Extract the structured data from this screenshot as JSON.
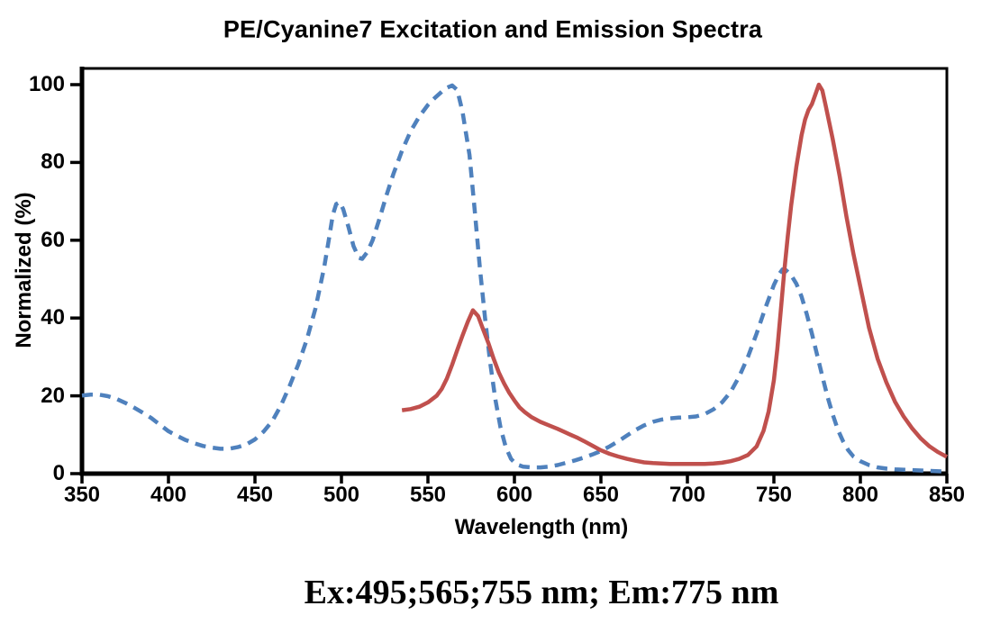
{
  "chart_data": {
    "type": "line",
    "title": "PE/Cyanine7 Excitation and Emission Spectra",
    "xlabel": "Wavelength (nm)",
    "ylabel": "Normalized (%)",
    "caption": "Ex:495;565;755 nm; Em:775 nm",
    "xlim": [
      350,
      850
    ],
    "ylim": [
      0,
      100
    ],
    "x_ticks": [
      350,
      400,
      450,
      500,
      550,
      600,
      650,
      700,
      750,
      800,
      850
    ],
    "y_ticks": [
      0,
      20,
      40,
      60,
      80,
      100
    ],
    "grid": false,
    "legend_position": "none",
    "axis_color": "#000000",
    "series": [
      {
        "name": "Excitation",
        "line_style": "dashed",
        "color": "#4f81bd",
        "peaks_nm": [
          495,
          565,
          755
        ],
        "points": [
          [
            350,
            20.1
          ],
          [
            355,
            20.3
          ],
          [
            360,
            20.3
          ],
          [
            365,
            19.9
          ],
          [
            370,
            19.2
          ],
          [
            375,
            18.2
          ],
          [
            380,
            17.0
          ],
          [
            385,
            15.7
          ],
          [
            390,
            14.3
          ],
          [
            395,
            12.6
          ],
          [
            400,
            10.9
          ],
          [
            405,
            9.7
          ],
          [
            410,
            8.6
          ],
          [
            415,
            7.8
          ],
          [
            420,
            7.1
          ],
          [
            425,
            6.7
          ],
          [
            430,
            6.4
          ],
          [
            435,
            6.4
          ],
          [
            440,
            6.8
          ],
          [
            445,
            7.5
          ],
          [
            450,
            8.8
          ],
          [
            455,
            10.8
          ],
          [
            460,
            13.5
          ],
          [
            465,
            17.5
          ],
          [
            470,
            22.5
          ],
          [
            475,
            28.0
          ],
          [
            480,
            34.5
          ],
          [
            485,
            42.5
          ],
          [
            490,
            53.0
          ],
          [
            493,
            61.0
          ],
          [
            495,
            66.5
          ],
          [
            497,
            69.3
          ],
          [
            499,
            69.8
          ],
          [
            501,
            68.0
          ],
          [
            504,
            63.5
          ],
          [
            507,
            58.5
          ],
          [
            510,
            55.5
          ],
          [
            512,
            55.2
          ],
          [
            515,
            57.0
          ],
          [
            518,
            60.0
          ],
          [
            522,
            65.5
          ],
          [
            526,
            71.5
          ],
          [
            530,
            77.0
          ],
          [
            535,
            83.0
          ],
          [
            540,
            88.0
          ],
          [
            545,
            91.8
          ],
          [
            550,
            94.8
          ],
          [
            554,
            96.6
          ],
          [
            558,
            98.2
          ],
          [
            561,
            99.2
          ],
          [
            564,
            99.8
          ],
          [
            567,
            98.6
          ],
          [
            570,
            93.0
          ],
          [
            574,
            82.0
          ],
          [
            577,
            68.0
          ],
          [
            580,
            53.0
          ],
          [
            583,
            40.0
          ],
          [
            586,
            28.5
          ],
          [
            589,
            19.0
          ],
          [
            592,
            11.8
          ],
          [
            595,
            6.8
          ],
          [
            598,
            3.8
          ],
          [
            601,
            2.4
          ],
          [
            605,
            1.8
          ],
          [
            610,
            1.6
          ],
          [
            615,
            1.6
          ],
          [
            620,
            1.8
          ],
          [
            625,
            2.2
          ],
          [
            630,
            2.8
          ],
          [
            635,
            3.4
          ],
          [
            640,
            4.1
          ],
          [
            645,
            4.9
          ],
          [
            650,
            5.8
          ],
          [
            655,
            7.0
          ],
          [
            660,
            8.3
          ],
          [
            665,
            9.8
          ],
          [
            670,
            11.2
          ],
          [
            675,
            12.4
          ],
          [
            680,
            13.3
          ],
          [
            685,
            13.9
          ],
          [
            690,
            14.2
          ],
          [
            695,
            14.4
          ],
          [
            700,
            14.5
          ],
          [
            705,
            14.7
          ],
          [
            710,
            15.3
          ],
          [
            715,
            16.5
          ],
          [
            720,
            18.3
          ],
          [
            725,
            21.0
          ],
          [
            730,
            25.0
          ],
          [
            735,
            30.0
          ],
          [
            740,
            36.0
          ],
          [
            745,
            42.5
          ],
          [
            750,
            48.5
          ],
          [
            753,
            51.3
          ],
          [
            755,
            52.5
          ],
          [
            757,
            52.3
          ],
          [
            760,
            51.0
          ],
          [
            763,
            48.8
          ],
          [
            766,
            45.5
          ],
          [
            769,
            41.0
          ],
          [
            772,
            36.0
          ],
          [
            775,
            30.5
          ],
          [
            778,
            25.0
          ],
          [
            781,
            19.8
          ],
          [
            784,
            15.2
          ],
          [
            787,
            11.3
          ],
          [
            790,
            8.3
          ],
          [
            793,
            6.0
          ],
          [
            796,
            4.4
          ],
          [
            800,
            3.2
          ],
          [
            805,
            2.2
          ],
          [
            810,
            1.6
          ],
          [
            815,
            1.3
          ],
          [
            820,
            1.1
          ],
          [
            830,
            0.9
          ],
          [
            840,
            0.7
          ],
          [
            850,
            0.5
          ]
        ]
      },
      {
        "name": "Emission",
        "line_style": "solid",
        "color": "#c0504d",
        "peaks_nm": [
          775
        ],
        "points": [
          [
            535,
            16.3
          ],
          [
            540,
            16.6
          ],
          [
            545,
            17.2
          ],
          [
            550,
            18.3
          ],
          [
            555,
            20.0
          ],
          [
            558,
            21.8
          ],
          [
            561,
            24.5
          ],
          [
            564,
            28.0
          ],
          [
            567,
            31.8
          ],
          [
            570,
            35.5
          ],
          [
            573,
            39.0
          ],
          [
            576,
            42.0
          ],
          [
            579,
            40.5
          ],
          [
            582,
            37.0
          ],
          [
            585,
            33.5
          ],
          [
            588,
            29.5
          ],
          [
            591,
            26.0
          ],
          [
            594,
            23.2
          ],
          [
            597,
            20.8
          ],
          [
            600,
            18.8
          ],
          [
            603,
            17.0
          ],
          [
            606,
            15.8
          ],
          [
            610,
            14.5
          ],
          [
            615,
            13.3
          ],
          [
            620,
            12.4
          ],
          [
            625,
            11.5
          ],
          [
            628,
            10.9
          ],
          [
            632,
            10.1
          ],
          [
            636,
            9.3
          ],
          [
            640,
            8.4
          ],
          [
            645,
            7.2
          ],
          [
            650,
            6.0
          ],
          [
            655,
            5.1
          ],
          [
            660,
            4.4
          ],
          [
            665,
            3.8
          ],
          [
            670,
            3.3
          ],
          [
            675,
            2.9
          ],
          [
            680,
            2.7
          ],
          [
            685,
            2.6
          ],
          [
            690,
            2.5
          ],
          [
            695,
            2.5
          ],
          [
            700,
            2.5
          ],
          [
            705,
            2.5
          ],
          [
            710,
            2.5
          ],
          [
            715,
            2.6
          ],
          [
            720,
            2.8
          ],
          [
            725,
            3.2
          ],
          [
            730,
            3.8
          ],
          [
            735,
            4.8
          ],
          [
            740,
            7.0
          ],
          [
            744,
            11.0
          ],
          [
            747,
            16.0
          ],
          [
            750,
            24.0
          ],
          [
            752,
            32.0
          ],
          [
            754,
            42.0
          ],
          [
            756,
            52.0
          ],
          [
            758,
            61.0
          ],
          [
            760,
            69.0
          ],
          [
            763,
            79.0
          ],
          [
            766,
            87.0
          ],
          [
            768,
            91.0
          ],
          [
            770,
            93.5
          ],
          [
            772,
            95.0
          ],
          [
            774,
            97.5
          ],
          [
            776,
            100.0
          ],
          [
            778,
            98.5
          ],
          [
            780,
            94.5
          ],
          [
            784,
            86.0
          ],
          [
            788,
            76.5
          ],
          [
            792,
            66.0
          ],
          [
            796,
            56.5
          ],
          [
            800,
            48.0
          ],
          [
            805,
            37.5
          ],
          [
            810,
            29.5
          ],
          [
            815,
            23.5
          ],
          [
            820,
            18.5
          ],
          [
            825,
            14.7
          ],
          [
            830,
            11.6
          ],
          [
            835,
            9.0
          ],
          [
            840,
            7.0
          ],
          [
            845,
            5.5
          ],
          [
            850,
            4.3
          ]
        ]
      }
    ]
  }
}
